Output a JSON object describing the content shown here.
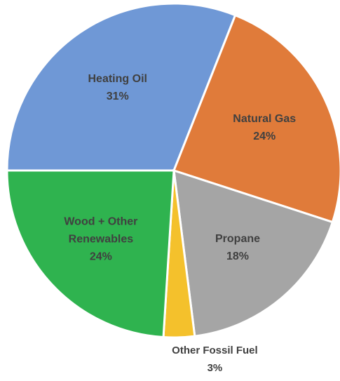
{
  "chart_data": {
    "type": "pie",
    "categories": [
      "Heating Oil",
      "Natural Gas",
      "Propane",
      "Other Fossil Fuel",
      "Wood + Other Renewables"
    ],
    "values": [
      31,
      24,
      18,
      3,
      24
    ],
    "value_labels": [
      "31%",
      "24%",
      "18%",
      "3%",
      "24%"
    ],
    "colors": [
      "#6f98d6",
      "#e07b3a",
      "#a5a5a5",
      "#f4c12c",
      "#2fb34f"
    ]
  }
}
